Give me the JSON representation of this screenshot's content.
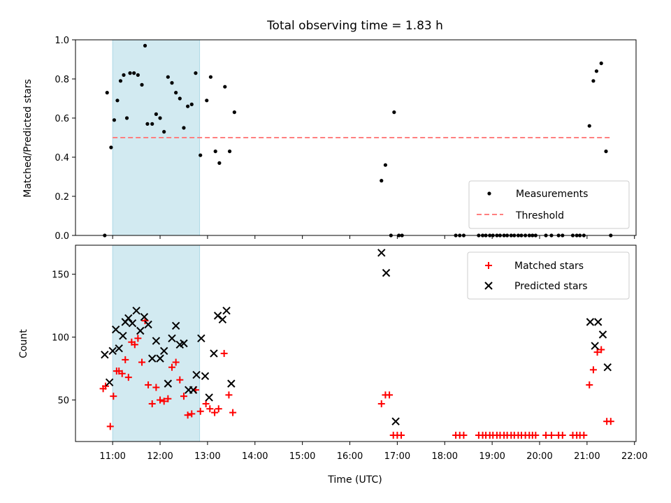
{
  "chart_data": {
    "type": "scatter",
    "title": "Total observing time = 1.83 h",
    "xlabel": "Time (UTC)",
    "x_ticks": [
      "11:00",
      "12:00",
      "13:00",
      "14:00",
      "15:00",
      "16:00",
      "17:00",
      "18:00",
      "19:00",
      "20:00",
      "21:00",
      "22:00"
    ],
    "xlim": [
      "10:13",
      "22:02"
    ],
    "shaded_span": [
      "11:00",
      "12:50"
    ],
    "shade_color": "#add8e6",
    "top_panel": {
      "ylabel": "Matched/Predicted stars",
      "ylim": [
        0,
        1.0
      ],
      "y_ticks": [
        0.0,
        0.2,
        0.4,
        0.6,
        0.8,
        1.0
      ],
      "threshold": {
        "value": 0.5,
        "x_range": [
          "11:00",
          "21:30"
        ],
        "color": "#ff7f7f"
      },
      "legend": [
        "Measurements",
        "Threshold"
      ],
      "legend_position": "lower right",
      "measurements": [
        [
          "10:50",
          0.0
        ],
        [
          "10:53",
          0.73
        ],
        [
          "10:58",
          0.45
        ],
        [
          "11:02",
          0.59
        ],
        [
          "11:06",
          0.69
        ],
        [
          "11:10",
          0.79
        ],
        [
          "11:14",
          0.82
        ],
        [
          "11:18",
          0.6
        ],
        [
          "11:22",
          0.83
        ],
        [
          "11:27",
          0.83
        ],
        [
          "11:32",
          0.82
        ],
        [
          "11:37",
          0.77
        ],
        [
          "11:41",
          0.97
        ],
        [
          "11:44",
          0.57
        ],
        [
          "11:50",
          0.57
        ],
        [
          "11:55",
          0.62
        ],
        [
          "12:00",
          0.6
        ],
        [
          "12:05",
          0.53
        ],
        [
          "12:10",
          0.81
        ],
        [
          "12:15",
          0.78
        ],
        [
          "12:20",
          0.73
        ],
        [
          "12:25",
          0.7
        ],
        [
          "12:30",
          0.55
        ],
        [
          "12:35",
          0.66
        ],
        [
          "12:40",
          0.67
        ],
        [
          "12:45",
          0.83
        ],
        [
          "12:51",
          0.41
        ],
        [
          "12:59",
          0.69
        ],
        [
          "13:04",
          0.81
        ],
        [
          "13:10",
          0.43
        ],
        [
          "13:15",
          0.37
        ],
        [
          "13:22",
          0.76
        ],
        [
          "13:28",
          0.43
        ],
        [
          "13:34",
          0.63
        ],
        [
          "16:40",
          0.28
        ],
        [
          "16:45",
          0.36
        ],
        [
          "16:52",
          0.0
        ],
        [
          "16:56",
          0.63
        ],
        [
          "17:02",
          0.0
        ],
        [
          "17:06",
          0.0
        ],
        [
          "18:14",
          0.0
        ],
        [
          "18:19",
          0.0
        ],
        [
          "18:24",
          0.0
        ],
        [
          "18:43",
          0.0
        ],
        [
          "18:48",
          0.0
        ],
        [
          "18:52",
          0.0
        ],
        [
          "18:57",
          0.0
        ],
        [
          "19:01",
          0.0
        ],
        [
          "19:06",
          0.0
        ],
        [
          "19:10",
          0.0
        ],
        [
          "19:15",
          0.0
        ],
        [
          "19:19",
          0.0
        ],
        [
          "19:24",
          0.0
        ],
        [
          "19:28",
          0.0
        ],
        [
          "19:33",
          0.0
        ],
        [
          "19:37",
          0.0
        ],
        [
          "19:42",
          0.0
        ],
        [
          "19:47",
          0.0
        ],
        [
          "19:51",
          0.0
        ],
        [
          "19:55",
          0.0
        ],
        [
          "20:08",
          0.0
        ],
        [
          "20:15",
          0.0
        ],
        [
          "20:24",
          0.0
        ],
        [
          "20:29",
          0.0
        ],
        [
          "20:42",
          0.0
        ],
        [
          "20:47",
          0.0
        ],
        [
          "20:51",
          0.0
        ],
        [
          "20:56",
          0.0
        ],
        [
          "21:03",
          0.56
        ],
        [
          "21:08",
          0.79
        ],
        [
          "21:12",
          0.84
        ],
        [
          "21:18",
          0.88
        ],
        [
          "21:24",
          0.43
        ],
        [
          "21:30",
          0.0
        ]
      ]
    },
    "bottom_panel": {
      "ylabel": "Count",
      "ylim": [
        17,
        173
      ],
      "y_ticks": [
        50,
        100,
        150
      ],
      "legend": [
        "Matched stars",
        "Predicted stars"
      ],
      "legend_position": "upper right",
      "matched_color": "#ff0000",
      "predicted_color": "#000000",
      "matched": [
        [
          "10:48",
          59
        ],
        [
          "10:51",
          61
        ],
        [
          "10:57",
          29
        ],
        [
          "11:01",
          53
        ],
        [
          "11:05",
          73
        ],
        [
          "11:08",
          73
        ],
        [
          "11:12",
          71
        ],
        [
          "11:16",
          82
        ],
        [
          "11:20",
          68
        ],
        [
          "11:24",
          96
        ],
        [
          "11:28",
          94
        ],
        [
          "11:32",
          99
        ],
        [
          "11:37",
          80
        ],
        [
          "11:41",
          113
        ],
        [
          "11:45",
          62
        ],
        [
          "11:50",
          47
        ],
        [
          "11:55",
          60
        ],
        [
          "12:00",
          50
        ],
        [
          "12:05",
          49
        ],
        [
          "12:10",
          51
        ],
        [
          "12:15",
          76
        ],
        [
          "12:20",
          80
        ],
        [
          "12:25",
          66
        ],
        [
          "12:30",
          53
        ],
        [
          "12:35",
          38
        ],
        [
          "12:40",
          39
        ],
        [
          "12:45",
          58
        ],
        [
          "12:51",
          41
        ],
        [
          "12:58",
          47
        ],
        [
          "13:03",
          43
        ],
        [
          "13:09",
          40
        ],
        [
          "13:14",
          43
        ],
        [
          "13:21",
          87
        ],
        [
          "13:27",
          54
        ],
        [
          "13:32",
          40
        ],
        [
          "16:40",
          47
        ],
        [
          "16:45",
          54
        ],
        [
          "16:50",
          54
        ],
        [
          "16:55",
          22
        ],
        [
          "17:00",
          22
        ],
        [
          "17:05",
          22
        ],
        [
          "18:14",
          22
        ],
        [
          "18:19",
          22
        ],
        [
          "18:24",
          22
        ],
        [
          "18:43",
          22
        ],
        [
          "18:48",
          22
        ],
        [
          "18:52",
          22
        ],
        [
          "18:57",
          22
        ],
        [
          "19:01",
          22
        ],
        [
          "19:06",
          22
        ],
        [
          "19:10",
          22
        ],
        [
          "19:15",
          22
        ],
        [
          "19:19",
          22
        ],
        [
          "19:24",
          22
        ],
        [
          "19:28",
          22
        ],
        [
          "19:33",
          22
        ],
        [
          "19:37",
          22
        ],
        [
          "19:42",
          22
        ],
        [
          "19:47",
          22
        ],
        [
          "19:51",
          22
        ],
        [
          "19:55",
          22
        ],
        [
          "20:08",
          22
        ],
        [
          "20:15",
          22
        ],
        [
          "20:24",
          22
        ],
        [
          "20:29",
          22
        ],
        [
          "20:42",
          22
        ],
        [
          "20:47",
          22
        ],
        [
          "20:51",
          22
        ],
        [
          "20:56",
          22
        ],
        [
          "21:03",
          62
        ],
        [
          "21:08",
          74
        ],
        [
          "21:13",
          88
        ],
        [
          "21:18",
          90
        ],
        [
          "21:25",
          33
        ],
        [
          "21:30",
          33
        ]
      ],
      "predicted": [
        [
          "10:50",
          86
        ],
        [
          "10:56",
          64
        ],
        [
          "11:00",
          89
        ],
        [
          "11:04",
          106
        ],
        [
          "11:08",
          91
        ],
        [
          "11:13",
          101
        ],
        [
          "11:16",
          112
        ],
        [
          "11:20",
          115
        ],
        [
          "11:25",
          111
        ],
        [
          "11:30",
          121
        ],
        [
          "11:35",
          105
        ],
        [
          "11:40",
          116
        ],
        [
          "11:45",
          110
        ],
        [
          "11:50",
          83
        ],
        [
          "11:55",
          97
        ],
        [
          "12:00",
          83
        ],
        [
          "12:05",
          89
        ],
        [
          "12:10",
          63
        ],
        [
          "12:15",
          99
        ],
        [
          "12:20",
          109
        ],
        [
          "12:25",
          94
        ],
        [
          "12:30",
          95
        ],
        [
          "12:36",
          58
        ],
        [
          "12:42",
          58
        ],
        [
          "12:46",
          70
        ],
        [
          "12:52",
          99
        ],
        [
          "12:57",
          69
        ],
        [
          "13:02",
          52
        ],
        [
          "13:08",
          87
        ],
        [
          "13:13",
          117
        ],
        [
          "13:19",
          114
        ],
        [
          "13:24",
          121
        ],
        [
          "13:30",
          63
        ],
        [
          "16:40",
          167
        ],
        [
          "16:46",
          151
        ],
        [
          "16:58",
          33
        ],
        [
          "21:04",
          112
        ],
        [
          "21:10",
          93
        ],
        [
          "21:14",
          112
        ],
        [
          "21:20",
          102
        ],
        [
          "21:26",
          76
        ]
      ]
    }
  }
}
